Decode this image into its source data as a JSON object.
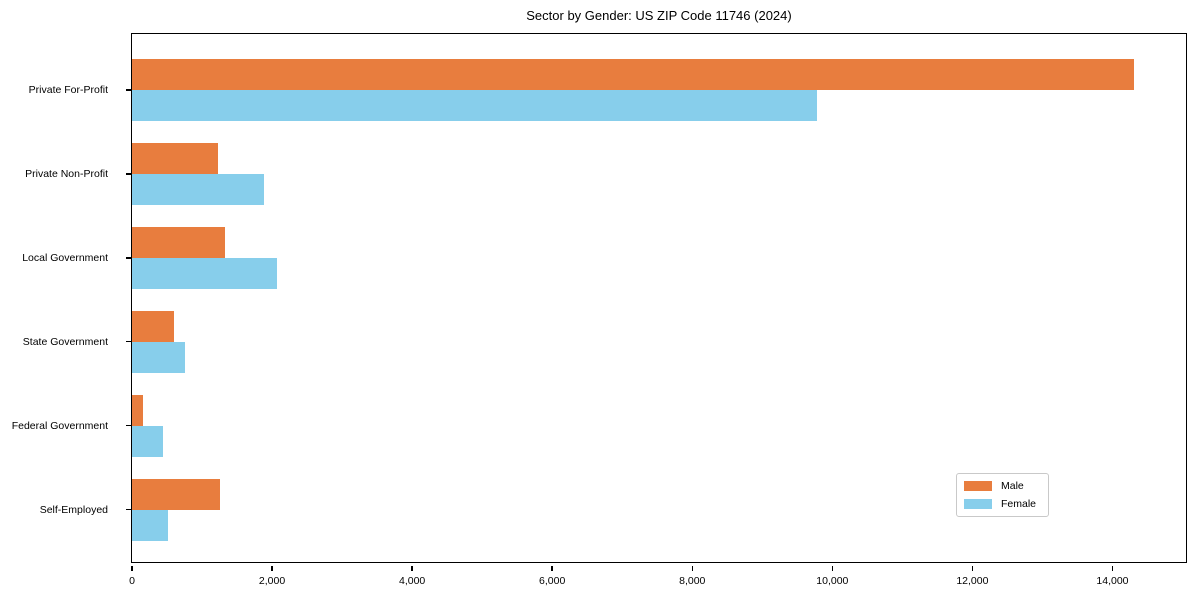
{
  "title": "Sector by Gender: US ZIP Code 11746 (2024)",
  "chart_data": {
    "type": "bar",
    "orientation": "horizontal",
    "title": "Sector by Gender: US ZIP Code 11746 (2024)",
    "categories": [
      "Private For-Profit",
      "Private Non-Profit",
      "Local Government",
      "State Government",
      "Federal Government",
      "Self-Employed"
    ],
    "series": [
      {
        "name": "Male",
        "color": "#e87d3e",
        "values": [
          14310,
          1230,
          1330,
          600,
          150,
          1250
        ]
      },
      {
        "name": "Female",
        "color": "#87ceeb",
        "values": [
          9780,
          1880,
          2070,
          760,
          440,
          510
        ]
      }
    ],
    "xlabel": "",
    "ylabel": "",
    "xlim": [
      0,
      15050
    ],
    "x_ticks": [
      0,
      2000,
      4000,
      6000,
      8000,
      10000,
      12000,
      14000
    ],
    "x_tick_labels": [
      "0",
      "2,000",
      "4,000",
      "6,000",
      "8,000",
      "10,000",
      "12,000",
      "14,000"
    ],
    "grid": false,
    "legend": {
      "position": "lower right",
      "entries": [
        "Male",
        "Female"
      ]
    }
  }
}
